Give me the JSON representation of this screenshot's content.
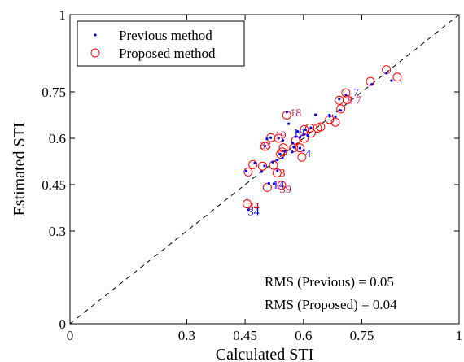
{
  "chart_data": {
    "type": "scatter",
    "xlabel": "Calculated STI",
    "ylabel": "Estimated STI",
    "xlim": [
      0,
      1
    ],
    "ylim": [
      0,
      1
    ],
    "grid": false,
    "x_ticks": [
      0,
      0.3,
      0.45,
      0.6,
      0.75,
      1
    ],
    "y_ticks": [
      0,
      0.3,
      0.45,
      0.6,
      0.75,
      1
    ],
    "x_tick_labels": [
      "0",
      "0.3",
      "0.45",
      "0.6",
      "0.75",
      "1"
    ],
    "y_tick_labels": [
      "0",
      "0.3",
      "0.45",
      "0.6",
      "0.75",
      "1"
    ],
    "reference_line": "y = x",
    "legend": {
      "placement": "top-left",
      "entries": [
        {
          "label": "Previous method",
          "marker": "dot",
          "color": "#0000ff"
        },
        {
          "label": "Proposed method",
          "marker": "circle",
          "color": "#ff0000"
        }
      ]
    },
    "annotations": {
      "rms_previous": "RMS (Previous) = 0.05",
      "rms_proposed": "RMS (Proposed) = 0.04"
    },
    "series": [
      {
        "name": "Previous method",
        "color": "#0000ff",
        "points": [
          {
            "x": 0.813,
            "y": 0.811
          },
          {
            "x": 0.826,
            "y": 0.787
          },
          {
            "x": 0.775,
            "y": 0.774
          },
          {
            "x": 0.709,
            "y": 0.741
          },
          {
            "x": 0.692,
            "y": 0.727
          },
          {
            "x": 0.696,
            "y": 0.69
          },
          {
            "x": 0.667,
            "y": 0.675
          },
          {
            "x": 0.682,
            "y": 0.67
          },
          {
            "x": 0.667,
            "y": 0.672
          },
          {
            "x": 0.631,
            "y": 0.676
          },
          {
            "x": 0.557,
            "y": 0.685
          },
          {
            "x": 0.562,
            "y": 0.647
          },
          {
            "x": 0.619,
            "y": 0.634
          },
          {
            "x": 0.605,
            "y": 0.628
          },
          {
            "x": 0.585,
            "y": 0.622
          },
          {
            "x": 0.601,
            "y": 0.612
          },
          {
            "x": 0.611,
            "y": 0.609
          },
          {
            "x": 0.591,
            "y": 0.603
          },
          {
            "x": 0.58,
            "y": 0.605
          },
          {
            "x": 0.536,
            "y": 0.6
          },
          {
            "x": 0.547,
            "y": 0.593
          },
          {
            "x": 0.516,
            "y": 0.602
          },
          {
            "x": 0.506,
            "y": 0.598
          },
          {
            "x": 0.501,
            "y": 0.575
          },
          {
            "x": 0.572,
            "y": 0.585
          },
          {
            "x": 0.575,
            "y": 0.571
          },
          {
            "x": 0.591,
            "y": 0.568
          },
          {
            "x": 0.571,
            "y": 0.556
          },
          {
            "x": 0.552,
            "y": 0.558
          },
          {
            "x": 0.54,
            "y": 0.549
          },
          {
            "x": 0.546,
            "y": 0.536
          },
          {
            "x": 0.533,
            "y": 0.53
          },
          {
            "x": 0.521,
            "y": 0.523
          },
          {
            "x": 0.5,
            "y": 0.511
          },
          {
            "x": 0.492,
            "y": 0.492
          },
          {
            "x": 0.475,
            "y": 0.52
          },
          {
            "x": 0.453,
            "y": 0.494
          },
          {
            "x": 0.533,
            "y": 0.495
          },
          {
            "x": 0.601,
            "y": 0.561
          },
          {
            "x": 0.511,
            "y": 0.454
          },
          {
            "x": 0.524,
            "y": 0.453
          },
          {
            "x": 0.459,
            "y": 0.369
          }
        ]
      },
      {
        "name": "Proposed method",
        "color": "#ff0000",
        "points": [
          {
            "x": 0.813,
            "y": 0.822
          },
          {
            "x": 0.841,
            "y": 0.798
          },
          {
            "x": 0.772,
            "y": 0.784
          },
          {
            "x": 0.709,
            "y": 0.747
          },
          {
            "x": 0.692,
            "y": 0.723
          },
          {
            "x": 0.712,
            "y": 0.725
          },
          {
            "x": 0.696,
            "y": 0.695
          },
          {
            "x": 0.667,
            "y": 0.661
          },
          {
            "x": 0.682,
            "y": 0.652
          },
          {
            "x": 0.644,
            "y": 0.637
          },
          {
            "x": 0.557,
            "y": 0.675
          },
          {
            "x": 0.636,
            "y": 0.633
          },
          {
            "x": 0.616,
            "y": 0.633
          },
          {
            "x": 0.602,
            "y": 0.628
          },
          {
            "x": 0.62,
            "y": 0.617
          },
          {
            "x": 0.602,
            "y": 0.6
          },
          {
            "x": 0.58,
            "y": 0.593
          },
          {
            "x": 0.536,
            "y": 0.6
          },
          {
            "x": 0.516,
            "y": 0.602
          },
          {
            "x": 0.501,
            "y": 0.574
          },
          {
            "x": 0.575,
            "y": 0.569
          },
          {
            "x": 0.591,
            "y": 0.569
          },
          {
            "x": 0.548,
            "y": 0.569
          },
          {
            "x": 0.546,
            "y": 0.556
          },
          {
            "x": 0.541,
            "y": 0.549
          },
          {
            "x": 0.596,
            "y": 0.539
          },
          {
            "x": 0.523,
            "y": 0.513
          },
          {
            "x": 0.495,
            "y": 0.51
          },
          {
            "x": 0.47,
            "y": 0.515
          },
          {
            "x": 0.458,
            "y": 0.491
          },
          {
            "x": 0.532,
            "y": 0.488
          },
          {
            "x": 0.544,
            "y": 0.448
          },
          {
            "x": 0.507,
            "y": 0.441
          },
          {
            "x": 0.455,
            "y": 0.388
          }
        ]
      }
    ],
    "point_labels": [
      {
        "text": "7",
        "x": 0.735,
        "y": 0.75,
        "color": "#0000ff"
      },
      {
        "text": "8",
        "x": 0.72,
        "y": 0.725,
        "color": "#cc2255"
      },
      {
        "text": "7",
        "x": 0.742,
        "y": 0.725,
        "color": "#cc2255"
      },
      {
        "text": "18",
        "x": 0.58,
        "y": 0.684,
        "color": "#cc2255"
      },
      {
        "text": "10",
        "x": 0.588,
        "y": 0.62,
        "color": "#0000ff"
      },
      {
        "text": "19",
        "x": 0.541,
        "y": 0.612,
        "color": "#cc2255"
      },
      {
        "text": "33",
        "x": 0.502,
        "y": 0.579,
        "color": "#cc2255"
      },
      {
        "text": "4",
        "x": 0.612,
        "y": 0.552,
        "color": "#0000ff"
      },
      {
        "text": "3",
        "x": 0.546,
        "y": 0.489,
        "color": "#ff0000"
      },
      {
        "text": "14",
        "x": 0.536,
        "y": 0.451,
        "color": "#0000ff"
      },
      {
        "text": "39",
        "x": 0.554,
        "y": 0.437,
        "color": "#cc2255"
      },
      {
        "text": "34",
        "x": 0.472,
        "y": 0.381,
        "color": "#ff0000"
      },
      {
        "text": "34",
        "x": 0.472,
        "y": 0.364,
        "color": "#0000ff"
      }
    ]
  }
}
